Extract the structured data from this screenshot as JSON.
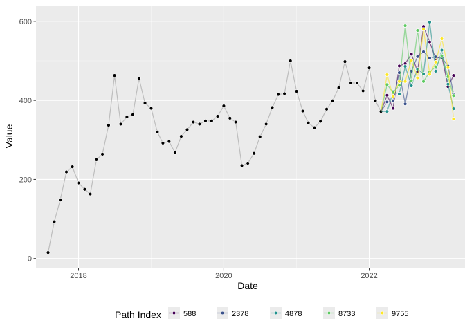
{
  "chart_data": {
    "type": "line",
    "xlabel": "Date",
    "ylabel": "Value",
    "xlim": [
      "2017-06-01",
      "2023-05-01"
    ],
    "ylim": [
      -25,
      640
    ],
    "grid": true,
    "legend_position": "bottom",
    "x_ticks": [
      {
        "value": "2018-01-01",
        "label": "2018"
      },
      {
        "value": "2020-01-01",
        "label": "2020"
      },
      {
        "value": "2022-01-01",
        "label": "2022"
      }
    ],
    "y_ticks": [
      0,
      200,
      400,
      600
    ],
    "history": {
      "color": "#000000",
      "line_color": "#bdbdbd",
      "points": [
        [
          "2017-08-01",
          15
        ],
        [
          "2017-09-01",
          93
        ],
        [
          "2017-10-01",
          148
        ],
        [
          "2017-11-01",
          219
        ],
        [
          "2017-12-01",
          232
        ],
        [
          "2018-01-01",
          191
        ],
        [
          "2018-02-01",
          175
        ],
        [
          "2018-03-01",
          163
        ],
        [
          "2018-04-01",
          250
        ],
        [
          "2018-05-01",
          264
        ],
        [
          "2018-06-01",
          337
        ],
        [
          "2018-07-01",
          463
        ],
        [
          "2018-08-01",
          340
        ],
        [
          "2018-09-01",
          358
        ],
        [
          "2018-10-01",
          364
        ],
        [
          "2018-11-01",
          456
        ],
        [
          "2018-12-01",
          393
        ],
        [
          "2019-01-01",
          380
        ],
        [
          "2019-02-01",
          320
        ],
        [
          "2019-03-01",
          292
        ],
        [
          "2019-04-01",
          296
        ],
        [
          "2019-05-01",
          268
        ],
        [
          "2019-06-01",
          309
        ],
        [
          "2019-07-01",
          326
        ],
        [
          "2019-08-01",
          345
        ],
        [
          "2019-09-01",
          340
        ],
        [
          "2019-10-01",
          348
        ],
        [
          "2019-11-01",
          348
        ],
        [
          "2019-12-01",
          360
        ],
        [
          "2020-01-01",
          386
        ],
        [
          "2020-02-01",
          355
        ],
        [
          "2020-03-01",
          345
        ],
        [
          "2020-04-01",
          235
        ],
        [
          "2020-05-01",
          241
        ],
        [
          "2020-06-01",
          266
        ],
        [
          "2020-07-01",
          308
        ],
        [
          "2020-08-01",
          340
        ],
        [
          "2020-09-01",
          382
        ],
        [
          "2020-10-01",
          415
        ],
        [
          "2020-11-01",
          417
        ],
        [
          "2020-12-01",
          500
        ],
        [
          "2021-01-01",
          423
        ],
        [
          "2021-02-01",
          373
        ],
        [
          "2021-03-01",
          343
        ],
        [
          "2021-04-01",
          331
        ],
        [
          "2021-05-01",
          347
        ],
        [
          "2021-06-01",
          378
        ],
        [
          "2021-07-01",
          399
        ],
        [
          "2021-08-01",
          432
        ],
        [
          "2021-09-01",
          498
        ],
        [
          "2021-10-01",
          444
        ],
        [
          "2021-11-01",
          444
        ],
        [
          "2021-12-01",
          424
        ],
        [
          "2022-01-01",
          482
        ],
        [
          "2022-02-01",
          399
        ],
        [
          "2022-03-01",
          372
        ]
      ]
    },
    "forecast_dates": [
      "2022-04-01",
      "2022-05-01",
      "2022-06-01",
      "2022-07-01",
      "2022-08-01",
      "2022-09-01",
      "2022-10-01",
      "2022-11-01",
      "2022-12-01",
      "2023-01-01",
      "2023-02-01",
      "2023-03-01"
    ],
    "legend_title": "Path Index",
    "series": [
      {
        "name": "588",
        "color": "#440154",
        "values": [
          413,
          380,
          487,
          493,
          517,
          473,
          587,
          548,
          505,
          512,
          435,
          463
        ]
      },
      {
        "name": "2378",
        "color": "#3b528b",
        "values": [
          396,
          399,
          470,
          391,
          474,
          511,
          523,
          507,
          510,
          508,
          487,
          416
        ]
      },
      {
        "name": "4878",
        "color": "#21918c",
        "values": [
          372,
          422,
          416,
          486,
          437,
          479,
          467,
          598,
          474,
          527,
          441,
          379
        ]
      },
      {
        "name": "8733",
        "color": "#5ec962",
        "values": [
          440,
          420,
          438,
          589,
          450,
          577,
          448,
          472,
          485,
          513,
          460,
          412
        ]
      },
      {
        "name": "9755",
        "color": "#fde725",
        "values": [
          465,
          410,
          448,
          448,
          501,
          457,
          580,
          466,
          497,
          556,
          483,
          353
        ]
      }
    ]
  }
}
